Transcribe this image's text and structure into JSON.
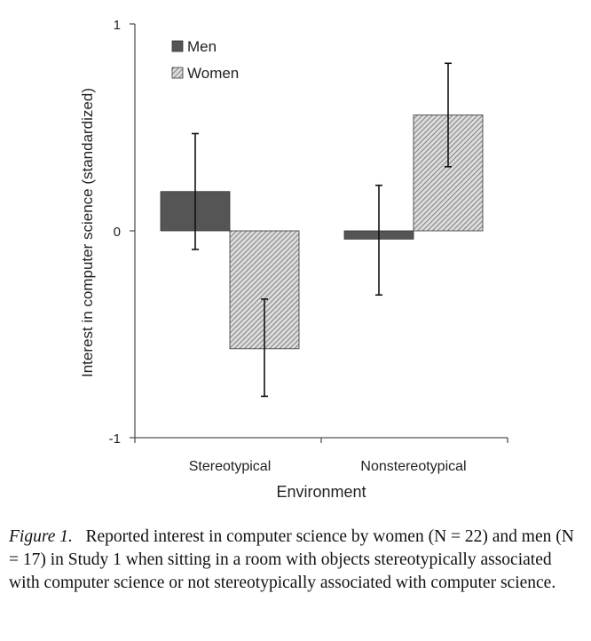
{
  "chart_data": {
    "type": "bar",
    "categories": [
      "Stereotypical",
      "Nonstereotypical"
    ],
    "series": [
      {
        "name": "Men",
        "values": [
          0.19,
          -0.04
        ],
        "error": [
          [
            -0.09,
            0.47
          ],
          [
            -0.31,
            0.22
          ]
        ],
        "color": "#555555",
        "pattern": "solid"
      },
      {
        "name": "Women",
        "values": [
          -0.57,
          0.56
        ],
        "error": [
          [
            -0.8,
            -0.33
          ],
          [
            0.31,
            0.81
          ]
        ],
        "color": "#aaaaaa",
        "pattern": "hatched"
      }
    ],
    "xlabel": "Environment",
    "ylabel": "Interest in computer science (standardized)",
    "ylim": [
      -1,
      1
    ],
    "yticks": [
      "1",
      "0",
      "-1"
    ],
    "legend_position": "top-left",
    "grid": false
  },
  "caption": {
    "label": "Figure 1.",
    "text": "Reported interest in computer science by women (N = 22) and men (N = 17) in Study 1 when sitting in a room with objects stereotypically associated with computer science or not stereotypically associated with computer science."
  }
}
